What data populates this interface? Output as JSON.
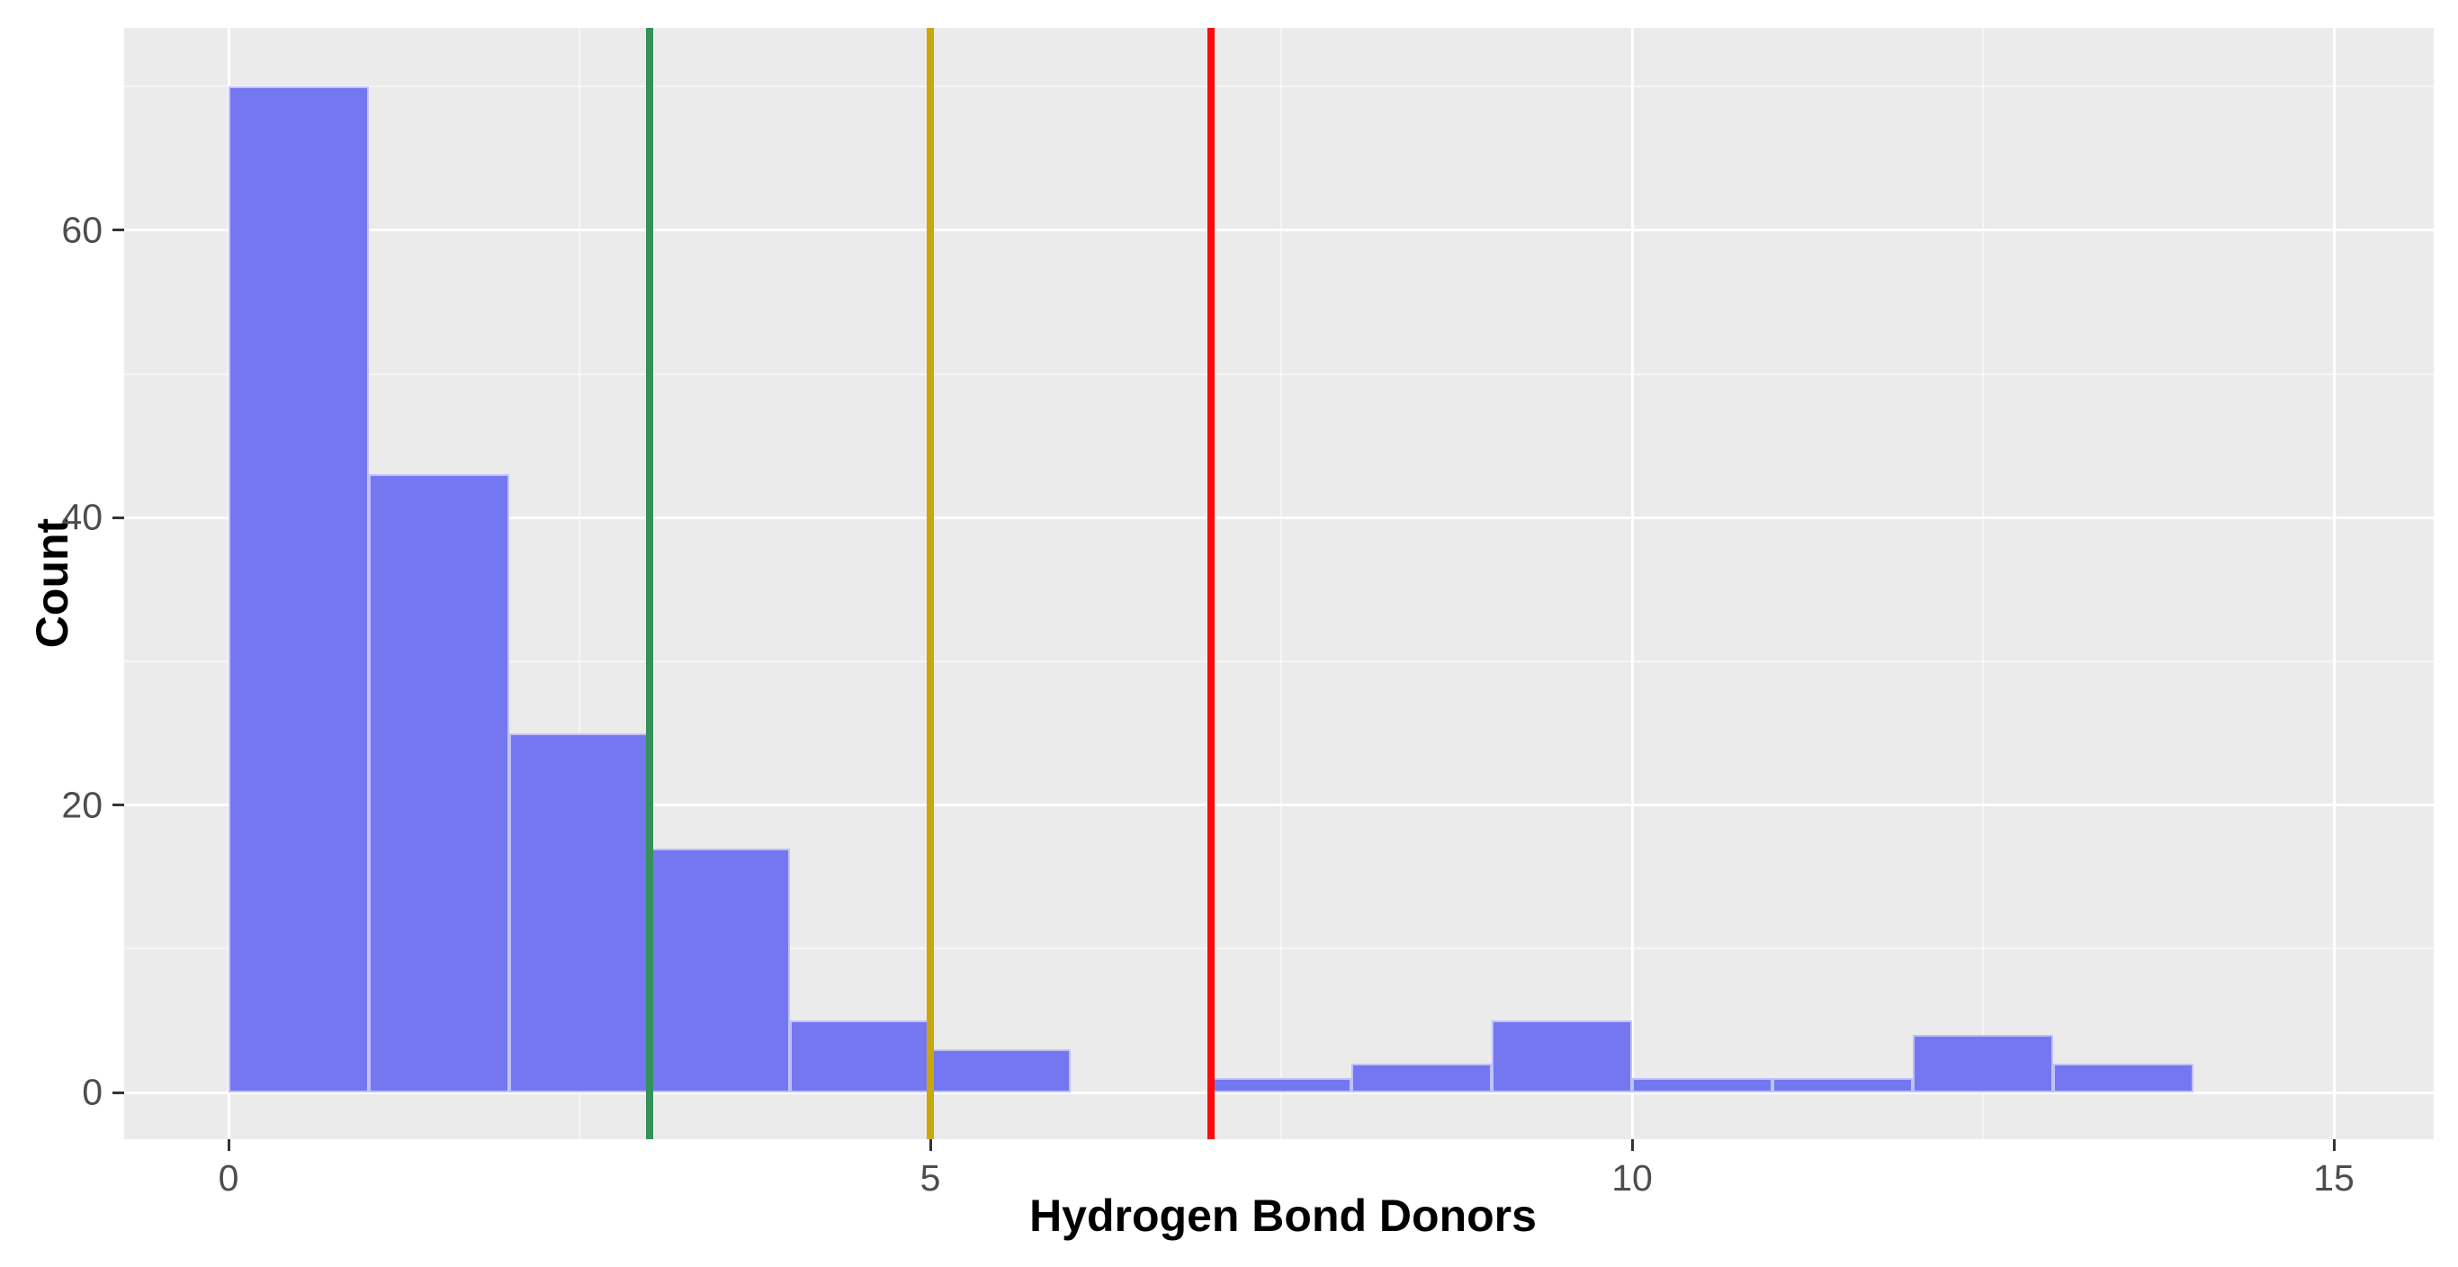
{
  "chart_data": {
    "type": "bar",
    "subtype": "histogram",
    "title": "",
    "xlabel": "Hydrogen Bond Donors",
    "ylabel": "Count",
    "bin_width": 1,
    "bins": [
      {
        "start": 0,
        "end": 1,
        "count": 70
      },
      {
        "start": 1,
        "end": 2,
        "count": 43
      },
      {
        "start": 2,
        "end": 3,
        "count": 25
      },
      {
        "start": 3,
        "end": 4,
        "count": 17
      },
      {
        "start": 4,
        "end": 5,
        "count": 5
      },
      {
        "start": 5,
        "end": 6,
        "count": 3
      },
      {
        "start": 6,
        "end": 7,
        "count": 0
      },
      {
        "start": 7,
        "end": 8,
        "count": 1
      },
      {
        "start": 8,
        "end": 9,
        "count": 2
      },
      {
        "start": 9,
        "end": 10,
        "count": 5
      },
      {
        "start": 10,
        "end": 11,
        "count": 1
      },
      {
        "start": 11,
        "end": 12,
        "count": 1
      },
      {
        "start": 12,
        "end": 13,
        "count": 4
      },
      {
        "start": 13,
        "end": 14,
        "count": 2
      }
    ],
    "x_ticks": [
      0,
      5,
      10,
      15
    ],
    "y_ticks": [
      0,
      20,
      40,
      60
    ],
    "x_minor_gridlines": [
      2.5,
      7.5,
      12.5
    ],
    "y_minor_gridlines": [
      10,
      30,
      50,
      70
    ],
    "xlim": [
      -0.75,
      15.7
    ],
    "ylim": [
      -3.3,
      74.1
    ],
    "grid": "on",
    "legend_position": "none",
    "reference_lines": [
      {
        "x": 3,
        "color": "#35915A",
        "name": "green-threshold-line"
      },
      {
        "x": 5,
        "color": "#C9A80C",
        "name": "yellow-threshold-line"
      },
      {
        "x": 7,
        "color": "#FC0D0D",
        "name": "red-threshold-line"
      }
    ],
    "colors": {
      "bar_fill": "#7477F0",
      "bar_border": "#FFFFFF",
      "panel_background": "#EBEBEB",
      "gridline": "#FFFFFF",
      "tick_label": "#4D4D4D",
      "axis_title": "#000000"
    }
  }
}
